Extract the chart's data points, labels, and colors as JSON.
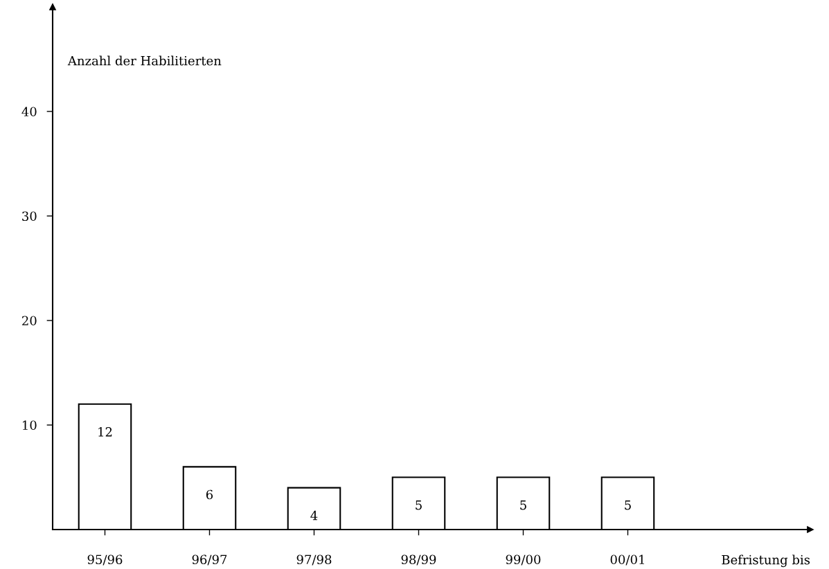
{
  "chart_data": {
    "type": "bar",
    "categories": [
      "95/96",
      "96/97",
      "97/98",
      "98/99",
      "99/00",
      "00/01"
    ],
    "values": [
      12,
      6,
      4,
      5,
      5,
      5
    ],
    "color": "#ffffff",
    "xlabel": "Befristung bis",
    "ylabel": "Anzahl der Habilitierten",
    "ylim": [
      0,
      50
    ],
    "yticks": [
      10,
      20,
      30,
      40
    ],
    "data_labels": true,
    "grid": false,
    "legend": false
  }
}
